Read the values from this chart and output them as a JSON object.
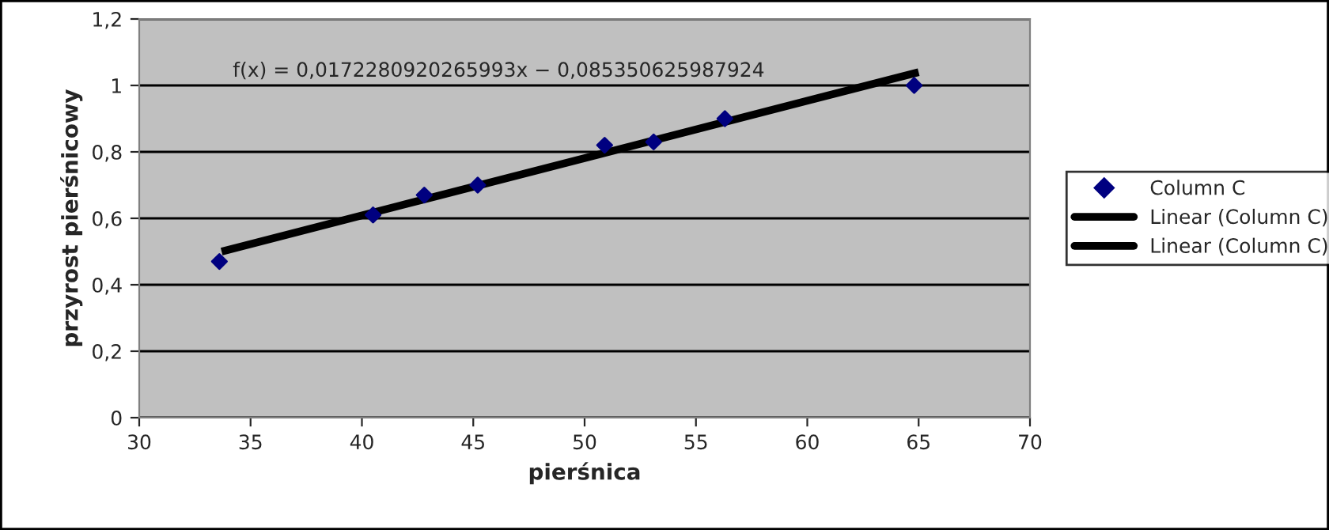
{
  "chart_data": {
    "type": "scatter",
    "xlabel": "pierśnica",
    "ylabel": "przyrost pierśnicowy",
    "xlim": [
      30,
      70
    ],
    "xticks": [
      30,
      35,
      40,
      45,
      50,
      55,
      60,
      65,
      70
    ],
    "ylim": [
      0,
      1.2
    ],
    "yticks": [
      {
        "value": 0,
        "label": "0"
      },
      {
        "value": 0.2,
        "label": "0,2"
      },
      {
        "value": 0.4,
        "label": "0,4"
      },
      {
        "value": 0.6,
        "label": "0,6"
      },
      {
        "value": 0.8,
        "label": "0,8"
      },
      {
        "value": 1,
        "label": "1"
      },
      {
        "value": 1.2,
        "label": "1,2"
      }
    ],
    "grid": "y",
    "legend": "right",
    "annotations": [
      "f(x) = 0,0172280920265993x − 0,085350625987924"
    ],
    "series": [
      {
        "name": "Column C",
        "marker": "diamond",
        "color": "#000080",
        "x": [
          33.6,
          40.5,
          42.8,
          45.2,
          50.9,
          53.1,
          56.3,
          64.8
        ],
        "values": [
          0.47,
          0.61,
          0.67,
          0.7,
          0.82,
          0.83,
          0.9,
          1.0
        ]
      },
      {
        "name": "Linear (Column C)",
        "type": "line",
        "color": "#000000",
        "x": [
          33.7,
          65
        ],
        "values": [
          0.5,
          1.04
        ]
      },
      {
        "name": "Linear (Column C)",
        "type": "line",
        "color": "#000000",
        "values": [
          null,
          null
        ]
      }
    ]
  }
}
